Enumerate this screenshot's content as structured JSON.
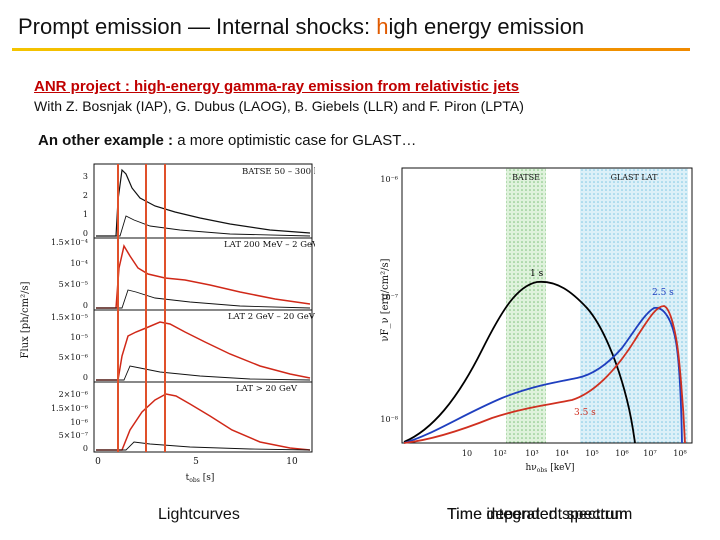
{
  "slide": {
    "title_pre": "Prompt emission — Internal shocks: ",
    "title_hl": "h",
    "title_post": "igh energy emission",
    "project": "ANR project : high-energy gamma-ray emission from relativistic jets",
    "authors": "With Z. Bosnjak (IAP), G. Dubus (LAOG), B. Giebels (LLR) and F. Piron (LPTA)",
    "example_bold": "An other example :",
    "example_rest": " a more optimistic case for GLAST…",
    "caption_left": "Lightcurves",
    "caption_right_a": "Time integrated spectrum",
    "caption_right_b": "Time dependent spectrum"
  },
  "lightcurves": {
    "ylabel": "Flux [ph/cm²/s]",
    "xlabel": "t",
    "xlabel_sub": "obs",
    "xlabel_unit": " [s]",
    "xticks": [
      "0",
      "5",
      "10"
    ],
    "panels": [
      {
        "label": "BATSE 50 – 300 keV",
        "yticks": [
          "3",
          "2",
          "1",
          "0"
        ]
      },
      {
        "label": "LAT 200 MeV – 2 GeV",
        "yticks": [
          "1.5×10⁻⁴",
          "10⁻⁴",
          "5×10⁻⁵",
          "0"
        ]
      },
      {
        "label": "LAT 2 GeV – 20 GeV",
        "yticks": [
          "1.5×10⁻⁵",
          "10⁻⁵",
          "5×10⁻⁶",
          "0"
        ]
      },
      {
        "label": "LAT > 20 GeV",
        "yticks": [
          "2×10⁻⁶",
          "1.5×10⁻⁶",
          "10⁻⁶",
          "5×10⁻⁷",
          "0"
        ]
      }
    ],
    "markers_s": [
      1,
      2.5,
      3.5
    ],
    "marker_color": "#e0502a"
  },
  "spectrum": {
    "ylabel": "νF_ν [erg/cm²/s]",
    "xlabel": "hν",
    "xlabel_sub": "obs",
    "xlabel_unit": " [keV]",
    "yticks": [
      "10⁻⁶",
      "10⁻⁷",
      "10⁻⁸"
    ],
    "xticks": [
      "10",
      "10²",
      "10³",
      "10⁴",
      "10⁵",
      "10⁶",
      "10⁷",
      "10⁸"
    ],
    "band_batse": "BATSE",
    "band_glast": "GLAST LAT",
    "series": [
      {
        "name": "1 s",
        "color": "#000000"
      },
      {
        "name": "2.5 s",
        "color": "#1f3fbf"
      },
      {
        "name": "3.5 s",
        "color": "#d03020"
      }
    ]
  }
}
